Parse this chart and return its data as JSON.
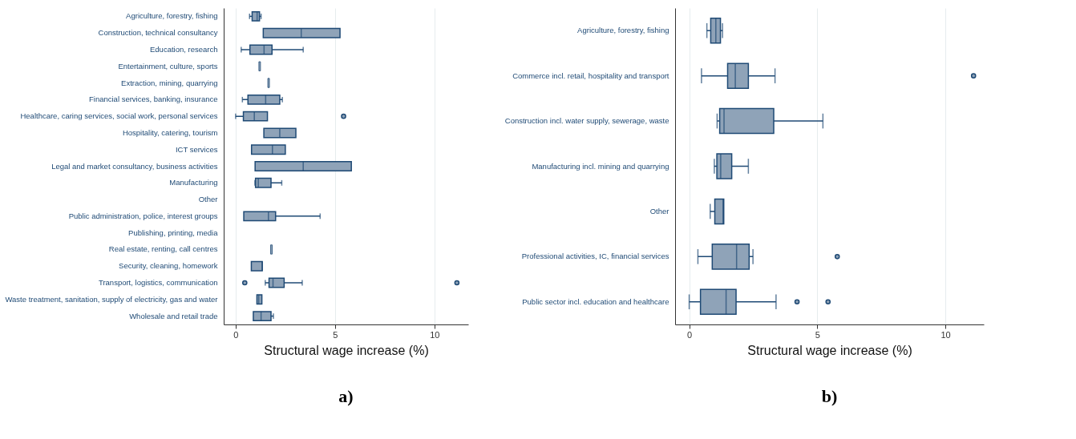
{
  "chart_data": [
    {
      "type": "box",
      "title": "a)",
      "xlabel": "Structural wage increase (%)",
      "orientation": "horizontal",
      "xlim": [
        -0.6,
        11.7
      ],
      "xticks": [
        0,
        5,
        10
      ],
      "grid": "x",
      "categories": [
        "Agriculture, forestry, fishing",
        "Construction, technical consultancy",
        "Education, research",
        "Entertainment, culture, sports",
        "Extraction, mining, quarrying",
        "Financial services, banking, insurance",
        "Healthcare, caring services, social work, personal services",
        "Hospitality, catering, tourism",
        "ICT services",
        "Legal and market consultancy, business activities",
        "Manufacturing",
        "Other",
        "Public administration, police, interest groups",
        "Publishing, printing, media",
        "Real estate, renting, call centres",
        "Security, cleaning, homework",
        "Transport, logistics, communication",
        "Waste treatment, sanitation, supply of electricity, gas and water",
        "Wholesale and retail trade"
      ],
      "series": [
        {
          "color": "#8fa3b8",
          "boxes": [
            {
              "low": 0.7,
              "q1": 0.83,
              "median": 1.08,
              "q3": 1.2,
              "high": 1.28
            },
            {
              "low": 1.39,
              "q1": 1.39,
              "median": 3.3,
              "q3": 5.25,
              "high": 5.25
            },
            {
              "low": 0.28,
              "q1": 0.72,
              "median": 1.43,
              "q3": 1.83,
              "high": 3.4
            },
            {
              "low": 1.21,
              "q1": 1.21,
              "median": 1.21,
              "q3": 1.21,
              "high": 1.21
            },
            {
              "low": 1.66,
              "q1": 1.66,
              "median": 1.66,
              "q3": 1.66,
              "high": 1.66
            },
            {
              "low": 0.34,
              "q1": 0.62,
              "median": 1.51,
              "q3": 2.22,
              "high": 2.35
            },
            {
              "low": 0,
              "q1": 0.39,
              "median": 0.94,
              "q3": 1.6,
              "high": 1.6,
              "outliers": [
                5.43
              ]
            },
            {
              "low": 1.42,
              "q1": 1.42,
              "median": 2.22,
              "q3": 3.03,
              "high": 3.03
            },
            {
              "low": 0.8,
              "q1": 0.8,
              "median": 1.85,
              "q3": 2.5,
              "high": 2.5
            },
            {
              "low": 0.98,
              "q1": 0.98,
              "median": 3.4,
              "q3": 5.82,
              "high": 5.82
            },
            {
              "low": 0.97,
              "q1": 1.0,
              "median": 1.14,
              "q3": 1.78,
              "high": 2.32
            },
            null,
            {
              "low": 0.41,
              "q1": 0.41,
              "median": 1.65,
              "q3": 2.01,
              "high": 4.25
            },
            null,
            {
              "low": 1.8,
              "q1": 1.8,
              "median": 1.8,
              "q3": 1.8,
              "high": 1.8
            },
            {
              "low": 0.79,
              "q1": 0.79,
              "median": 1.34,
              "q3": 1.34,
              "high": 1.34
            },
            {
              "low": 1.49,
              "q1": 1.68,
              "median": 1.88,
              "q3": 2.44,
              "high": 3.35,
              "outliers": [
                0.46,
                11.13
              ]
            },
            {
              "low": 1.07,
              "q1": 1.07,
              "median": 1.16,
              "q3": 1.32,
              "high": 1.32
            },
            {
              "low": 0.89,
              "q1": 0.89,
              "median": 1.28,
              "q3": 1.78,
              "high": 1.9
            }
          ]
        }
      ]
    },
    {
      "type": "box",
      "title": "b)",
      "xlabel": "Structural wage increase (%)",
      "orientation": "horizontal",
      "xlim": [
        -0.55,
        11.5
      ],
      "xticks": [
        0,
        5,
        10
      ],
      "grid": "x",
      "categories": [
        "Agriculture, forestry, fishing",
        "Commerce incl. retail, hospitality and transport",
        "Construction incl. water supply, sewerage, waste",
        "Manufacturing incl. mining and quarrying",
        "Other",
        "Professional activities, IC, financial services",
        "Public sector incl. education and healthcare"
      ],
      "series": [
        {
          "color": "#8fa3b8",
          "boxes": [
            {
              "low": 0.69,
              "q1": 0.84,
              "median": 1.04,
              "q3": 1.22,
              "high": 1.3
            },
            {
              "low": 0.48,
              "q1": 1.5,
              "median": 1.8,
              "q3": 2.31,
              "high": 3.35,
              "outliers": [
                11.1
              ]
            },
            {
              "low": 1.09,
              "q1": 1.19,
              "median": 1.36,
              "q3": 3.3,
              "high": 5.22
            },
            {
              "low": 0.98,
              "q1": 1.08,
              "median": 1.23,
              "q3": 1.66,
              "high": 2.31
            },
            {
              "low": 0.82,
              "q1": 1.0,
              "median": 1.32,
              "q3": 1.35,
              "high": 1.35
            },
            {
              "low": 0.34,
              "q1": 0.9,
              "median": 1.85,
              "q3": 2.34,
              "high": 2.49,
              "outliers": [
                5.78
              ]
            },
            {
              "low": 0,
              "q1": 0.44,
              "median": 1.44,
              "q3": 1.83,
              "high": 3.39,
              "outliers": [
                4.21,
                5.42
              ]
            }
          ]
        }
      ]
    }
  ]
}
